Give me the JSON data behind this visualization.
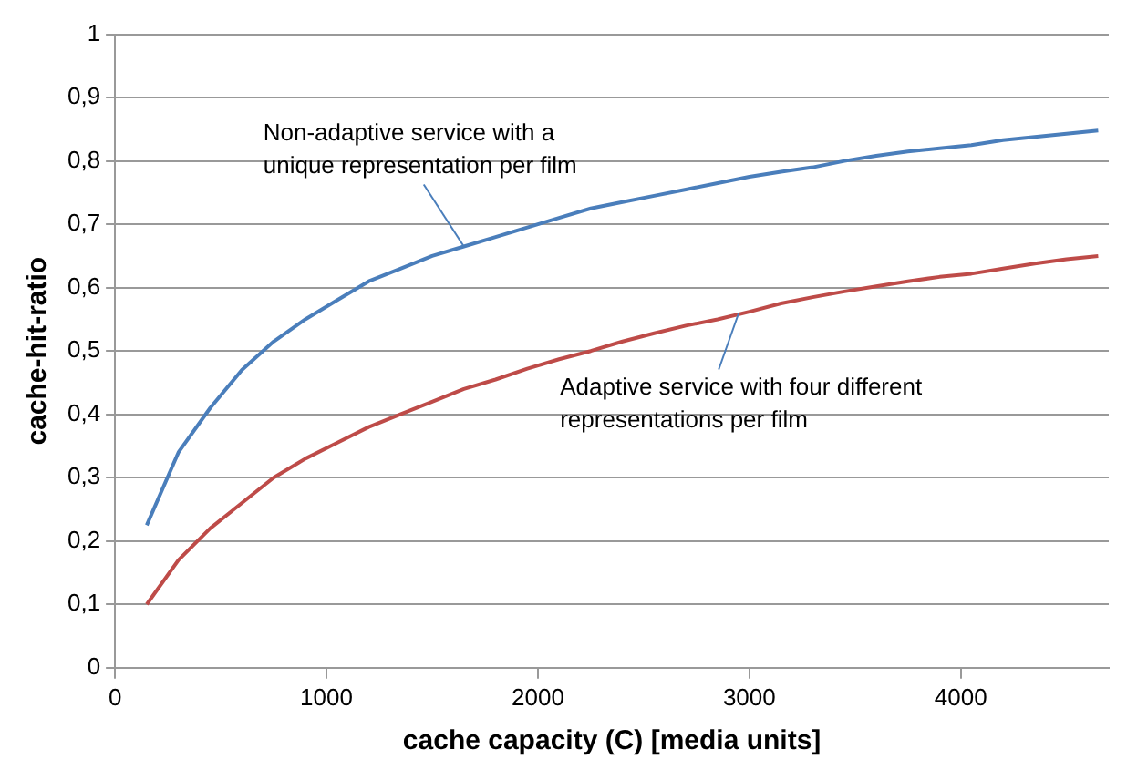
{
  "chart_data": {
    "type": "line",
    "xlabel": "cache capacity (C) [media units]",
    "ylabel": "cache-hit-ratio",
    "x": [
      150,
      300,
      450,
      600,
      750,
      900,
      1050,
      1200,
      1350,
      1500,
      1650,
      1800,
      1950,
      2100,
      2250,
      2400,
      2550,
      2700,
      2850,
      3000,
      3150,
      3300,
      3450,
      3600,
      3750,
      3900,
      4050,
      4200,
      4350,
      4500,
      4650
    ],
    "series": [
      {
        "color": "#4a7ebb",
        "values": [
          0.225,
          0.34,
          0.41,
          0.47,
          0.515,
          0.55,
          0.58,
          0.61,
          0.63,
          0.65,
          0.665,
          0.68,
          0.695,
          0.71,
          0.725,
          0.735,
          0.745,
          0.755,
          0.765,
          0.775,
          0.783,
          0.79,
          0.8,
          0.808,
          0.815,
          0.82,
          0.825,
          0.833,
          0.838,
          0.843,
          0.848
        ]
      },
      {
        "color": "#be4b48",
        "values": [
          0.1,
          0.17,
          0.22,
          0.26,
          0.3,
          0.33,
          0.355,
          0.38,
          0.4,
          0.42,
          0.44,
          0.455,
          0.472,
          0.487,
          0.5,
          0.515,
          0.528,
          0.54,
          0.55,
          0.562,
          0.575,
          0.585,
          0.594,
          0.602,
          0.61,
          0.617,
          0.622,
          0.63,
          0.638,
          0.645,
          0.65
        ]
      }
    ],
    "xlim": [
      0,
      4700
    ],
    "xticks": [
      0,
      1000,
      2000,
      3000,
      4000
    ],
    "ylim": [
      0,
      1
    ],
    "yticks": [
      0,
      {
        "value": 0.1,
        "label": "0,1"
      },
      {
        "value": 0.2,
        "label": "0,2"
      },
      {
        "value": 0.3,
        "label": "0,3"
      },
      {
        "value": 0.4,
        "label": "0,4"
      },
      {
        "value": 0.5,
        "label": "0,5"
      },
      {
        "value": 0.6,
        "label": "0,6"
      },
      {
        "value": 0.7,
        "label": "0,7"
      },
      {
        "value": 0.8,
        "label": "0,8"
      },
      {
        "value": 0.9,
        "label": "0,9"
      },
      1
    ],
    "grid": "y",
    "legend": false,
    "marker": "none",
    "line_style": "solid",
    "annotations": [
      {
        "text": "Non-adaptive service with a unique representation per film",
        "x": 1650,
        "y": 0.665
      },
      {
        "text": "Adaptive service with four different representations per film",
        "x": 2950,
        "y": 0.56
      }
    ]
  }
}
